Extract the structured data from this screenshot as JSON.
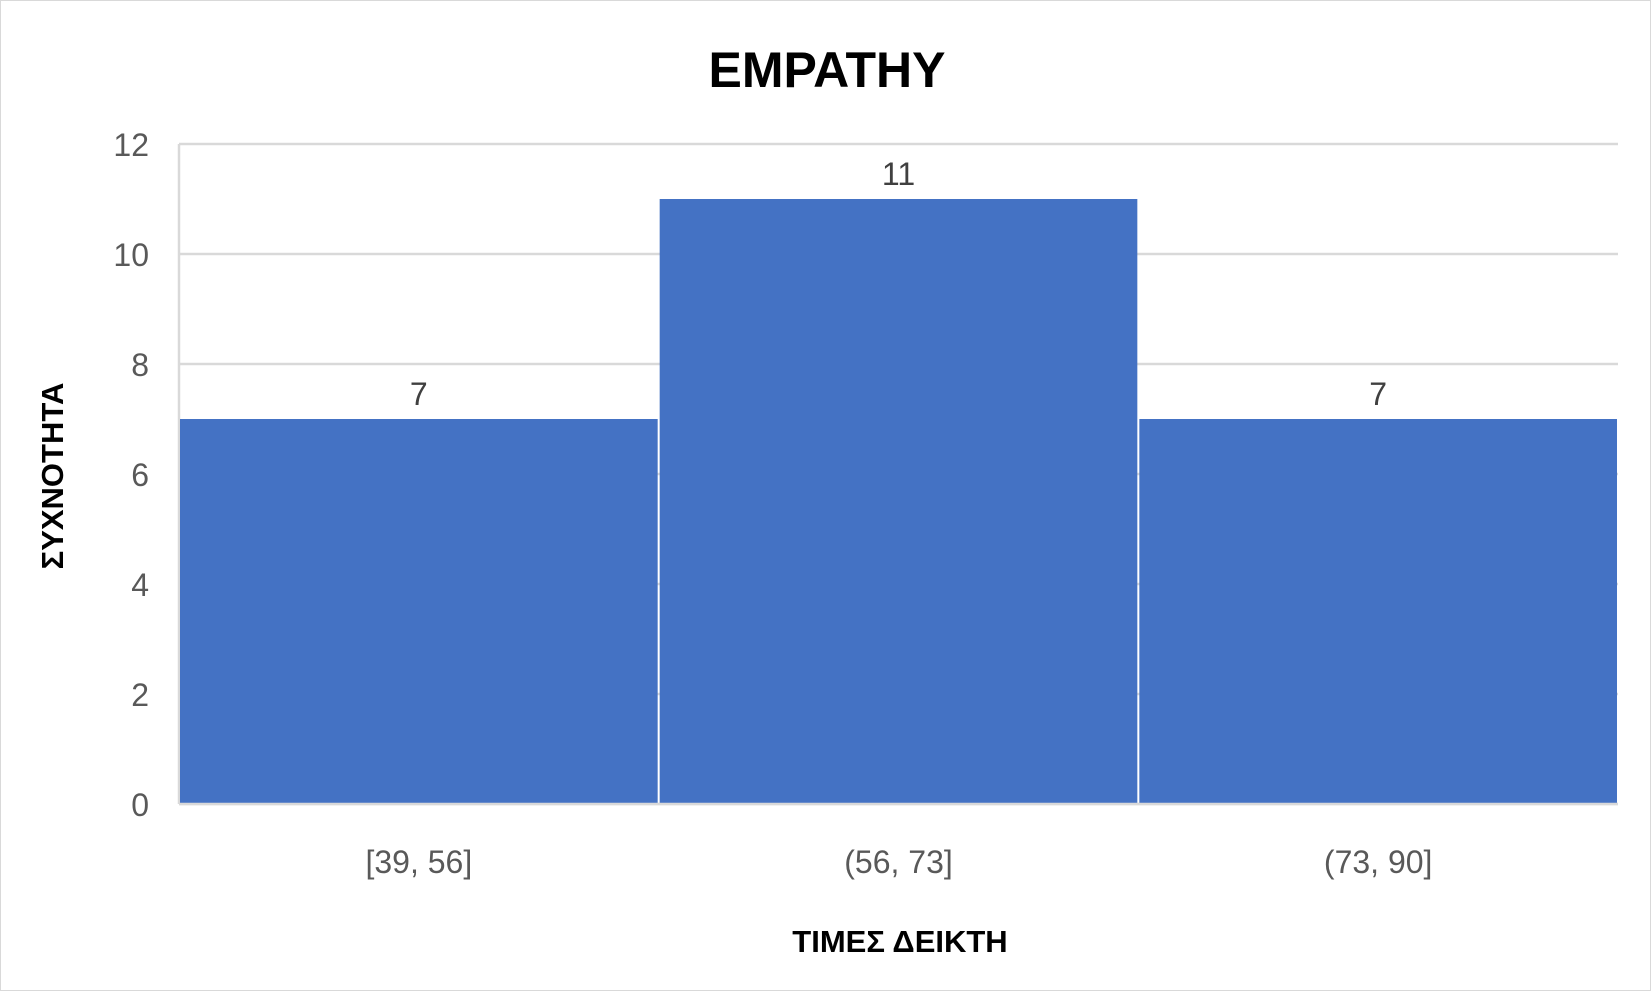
{
  "chart_data": {
    "type": "bar",
    "title": "EMPATHY",
    "xlabel": "ΤΙΜΕΣ ΔΕΙΚΤΗ",
    "ylabel": "ΣΥΧΝΟΤΗΤΑ",
    "categories": [
      "[39, 56]",
      "(56, 73]",
      "(73, 90]"
    ],
    "values": [
      7,
      11,
      7
    ],
    "ylim": [
      0,
      12
    ],
    "yticks": [
      0,
      2,
      4,
      6,
      8,
      10,
      12
    ],
    "grid": true,
    "legend": "none",
    "data_labels": [
      "7",
      "11",
      "7"
    ],
    "colors": {
      "bar": "#4472C4",
      "gridline": "#d9d9d9",
      "axis_text": "#595959",
      "data_label": "#404040"
    }
  }
}
